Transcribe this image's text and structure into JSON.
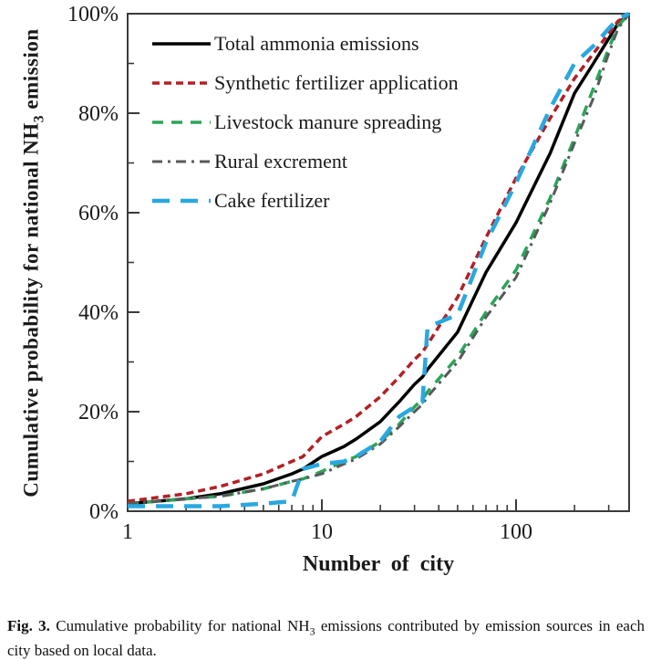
{
  "figure": {
    "caption": {
      "label": "Fig. 3.",
      "pre": " Cumulative probability for national NH",
      "sub": "3",
      "post": " emissions contributed by emission sources in each city based on local data."
    }
  },
  "chart_data": {
    "type": "line",
    "title": "",
    "xlabel": "Number of city",
    "ylabel": {
      "pre": "Cumulative probability for national NH",
      "sub": "3",
      "post": " emission"
    },
    "x_scale": "log",
    "xlim": [
      1,
      382
    ],
    "ylim": [
      0,
      100
    ],
    "grid": false,
    "legend_position": "top-left-inside",
    "x_major_ticks": [
      1,
      10,
      100
    ],
    "x_tick_labels": [
      "1",
      "10",
      "100"
    ],
    "x_minor_ticks": [
      2,
      3,
      4,
      5,
      6,
      7,
      8,
      9,
      20,
      30,
      40,
      50,
      60,
      70,
      80,
      90,
      200,
      300
    ],
    "y_major_ticks": [
      0,
      20,
      40,
      60,
      80,
      100
    ],
    "y_tick_labels": [
      "0%",
      "20%",
      "40%",
      "60%",
      "80%",
      "100%"
    ],
    "y_minor_ticks": [
      10,
      30,
      50,
      70,
      90
    ],
    "x": [
      1,
      2,
      3,
      5,
      7,
      8,
      10,
      13,
      15,
      20,
      25,
      30,
      33,
      35,
      50,
      70,
      100,
      150,
      200,
      250,
      300,
      335,
      382
    ],
    "series": [
      {
        "name": "Total ammonia emissions",
        "color": "#000000",
        "dash": "solid",
        "width": 3.5,
        "values": [
          1.5,
          2.5,
          3.5,
          5.5,
          7.5,
          8.5,
          11,
          13,
          14.5,
          18,
          22,
          25.5,
          27,
          28.5,
          36,
          48,
          58,
          72,
          84,
          90,
          95,
          98,
          100
        ]
      },
      {
        "name": "Synthetic fertilizer application",
        "color": "#b22025",
        "dash": "8 5",
        "width": 3.5,
        "values": [
          2,
          3.5,
          5,
          7.5,
          10,
          11,
          15,
          17.5,
          19,
          23,
          27,
          30.5,
          32,
          33.5,
          43,
          55,
          67,
          79,
          87,
          92,
          96,
          98.5,
          100
        ]
      },
      {
        "name": "Livestock manure spreading",
        "color": "#2aa55a",
        "dash": "12 9",
        "width": 3.5,
        "values": [
          1.5,
          2.5,
          3,
          4.5,
          6,
          6.5,
          8,
          10,
          11,
          14,
          17.5,
          21,
          22.5,
          24,
          31,
          40,
          48.5,
          63,
          75,
          85,
          93,
          97.5,
          100
        ]
      },
      {
        "name": "Rural excrement",
        "color": "#595959",
        "dash": "11 6 3 6",
        "width": 3,
        "values": [
          1.5,
          2.5,
          3,
          4.5,
          6,
          6.5,
          7.5,
          9.5,
          10.5,
          13.5,
          17,
          20,
          21.5,
          23,
          30,
          39,
          47,
          62,
          74,
          83,
          92,
          97,
          100
        ]
      },
      {
        "name": "Cake fertilizer",
        "color": "#29a8e0",
        "dash": "19 12",
        "width": 4.5,
        "values": [
          1,
          1,
          1,
          1.5,
          2,
          8.5,
          9.5,
          10,
          11,
          14,
          19,
          21,
          22,
          37,
          39.5,
          54,
          66,
          81,
          90,
          93.5,
          97,
          99,
          100
        ]
      }
    ]
  }
}
